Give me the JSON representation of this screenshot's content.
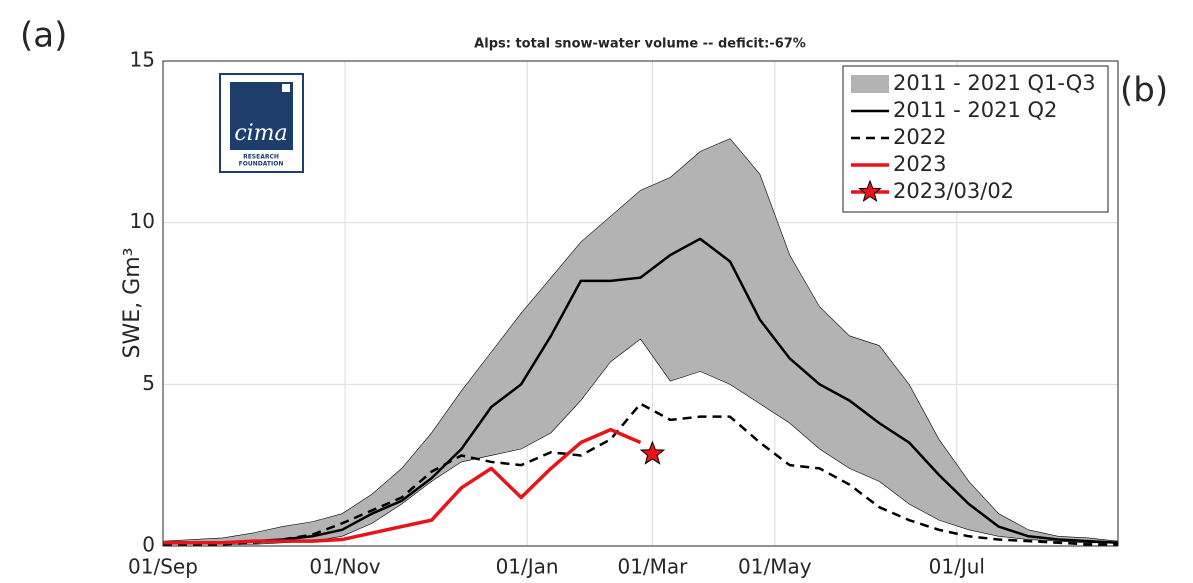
{
  "chart_data": {
    "type": "line",
    "title": "Alps: total snow-water volume -- deficit:-67%",
    "y_label": "SWE, Gm³",
    "panel_labels": [
      "(a)",
      "(b)"
    ],
    "logo": {
      "name": "cima",
      "lines": [
        "RESEARCH",
        "FOUNDATION"
      ]
    },
    "x": [
      0,
      10,
      20,
      30,
      40,
      50,
      60,
      70,
      80,
      90,
      100,
      110,
      120,
      130,
      140,
      150,
      160,
      170,
      180,
      190,
      200,
      210,
      220,
      230,
      240,
      250,
      260,
      270,
      280,
      290,
      300,
      310,
      320
    ],
    "xlim": [
      0,
      320
    ],
    "xticks": [
      {
        "value": 0,
        "label": "01/Sep"
      },
      {
        "value": 61,
        "label": "01/Nov"
      },
      {
        "value": 122,
        "label": "01/Jan"
      },
      {
        "value": 164,
        "label": "01/Mar"
      },
      {
        "value": 205,
        "label": "01/May"
      },
      {
        "value": 266,
        "label": "01/Jul"
      }
    ],
    "ylim": [
      0,
      15
    ],
    "yticks": [
      0,
      5,
      10,
      15
    ],
    "grid": true,
    "legend": "upper right",
    "series": [
      {
        "name": "2011 - 2021 Q1-Q3",
        "kind": "band",
        "color": "#b3b3b3",
        "upper": [
          0.15,
          0.2,
          0.25,
          0.4,
          0.6,
          0.75,
          1.0,
          1.6,
          2.4,
          3.5,
          4.8,
          6.0,
          7.2,
          8.3,
          9.4,
          10.2,
          11.0,
          11.4,
          12.2,
          12.6,
          11.5,
          9.0,
          7.4,
          6.5,
          6.2,
          5.0,
          3.3,
          2.0,
          1.0,
          0.5,
          0.3,
          0.25,
          0.15
        ],
        "lower": [
          0.05,
          0.05,
          0.05,
          0.05,
          0.1,
          0.15,
          0.3,
          0.7,
          1.3,
          2.0,
          2.6,
          2.8,
          3.0,
          3.5,
          4.5,
          5.7,
          6.4,
          5.1,
          5.4,
          5.0,
          4.4,
          3.8,
          3.0,
          2.4,
          2.0,
          1.3,
          0.8,
          0.5,
          0.3,
          0.2,
          0.15,
          0.1,
          0.1
        ]
      },
      {
        "name": "2011 - 2021 Q2",
        "kind": "line",
        "color": "#000000",
        "dash": "solid",
        "values": [
          0.1,
          0.1,
          0.1,
          0.15,
          0.2,
          0.3,
          0.5,
          1.0,
          1.4,
          2.1,
          3.0,
          4.3,
          5.0,
          6.5,
          8.2,
          8.2,
          8.3,
          9.0,
          9.5,
          8.8,
          7.0,
          5.8,
          5.0,
          4.5,
          3.8,
          3.2,
          2.2,
          1.3,
          0.6,
          0.3,
          0.2,
          0.15,
          0.1
        ]
      },
      {
        "name": "2022",
        "kind": "line",
        "color": "#000000",
        "dash": "dashed",
        "values": [
          0.05,
          0.05,
          0.05,
          0.1,
          0.2,
          0.35,
          0.7,
          1.1,
          1.5,
          2.3,
          2.8,
          2.6,
          2.5,
          2.9,
          2.8,
          3.3,
          4.4,
          3.9,
          4.0,
          4.0,
          3.2,
          2.5,
          2.4,
          1.9,
          1.2,
          0.8,
          0.5,
          0.3,
          0.2,
          0.15,
          0.1,
          0.05,
          0.05
        ]
      },
      {
        "name": "2023",
        "kind": "line",
        "color": "#e8141a",
        "dash": "solid",
        "values": [
          0.1,
          0.1,
          0.1,
          0.15,
          0.15,
          0.15,
          0.2,
          0.4,
          0.6,
          0.8,
          1.8,
          2.4,
          1.5,
          2.4,
          3.2,
          3.6,
          3.2,
          null,
          null,
          null,
          null,
          null,
          null,
          null,
          null,
          null,
          null,
          null,
          null,
          null,
          null,
          null,
          null
        ]
      },
      {
        "name": "2023/03/02",
        "kind": "star",
        "color": "#e8141a",
        "x": [
          164
        ],
        "values": [
          2.85
        ]
      }
    ]
  }
}
